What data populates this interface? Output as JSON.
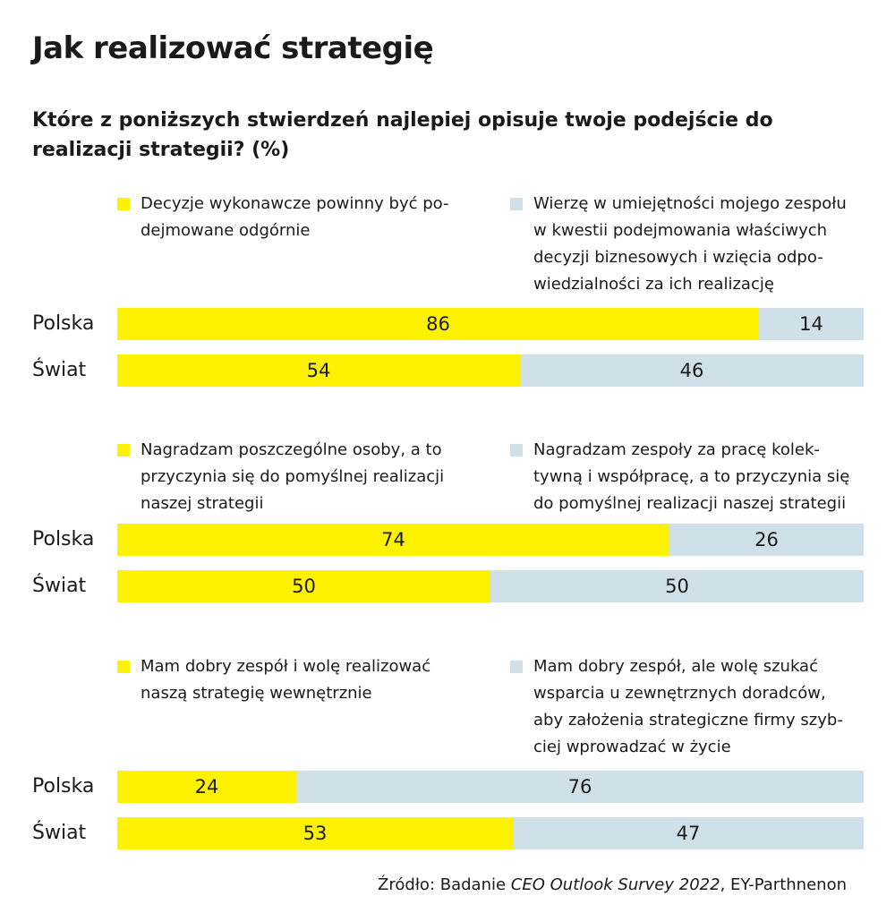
{
  "title": "Jak realizować strategię",
  "subtitle": "Które z poniższych stwierdzeń najlepiej opisuje twoje podejście do realizacji strategii? (%)",
  "colors": {
    "yellow": "#fff200",
    "blue": "#cfe0e8",
    "text": "#1a1a1a"
  },
  "source": {
    "prefix": "Źródło: Badanie ",
    "italic": "CEO Outlook Survey 2022",
    "suffix": ", EY-Parthnenon"
  },
  "chart_data": [
    {
      "type": "bar",
      "stacked": true,
      "categories": [
        "Polska",
        "Świat"
      ],
      "series": [
        {
          "name": "Decyzje wykonawcze powinny być podejmowane odgórnie",
          "values": [
            86,
            54
          ]
        },
        {
          "name": "Wierzę w umiejętności mojego zespołu w kwestii podejmowania właściwych decyzji biznesowych i wzięcia odpowiedzialności za ich realizację",
          "values": [
            14,
            46
          ]
        }
      ],
      "legend_lines": [
        [
          "Decyzje wykonawcze powinny być po-",
          "dejmowane odgórnie"
        ],
        [
          "Wierzę w umiejętności mojego zespołu",
          "w kwestii podejmowania właściwych",
          "decyzji biznesowych i wzięcia odpo-",
          "wiedzialności za ich realizację"
        ]
      ]
    },
    {
      "type": "bar",
      "stacked": true,
      "categories": [
        "Polska",
        "Świat"
      ],
      "series": [
        {
          "name": "Nagradzam poszczególne osoby, a to przyczynia się do pomyślnej realizacji naszej strategii",
          "values": [
            74,
            50
          ]
        },
        {
          "name": "Nagradzam zespoły za pracę kolektywną i współpracę, a to przyczynia się do pomyślnej realizacji naszej strategii",
          "values": [
            26,
            50
          ]
        }
      ],
      "legend_lines": [
        [
          "Nagradzam poszczególne osoby, a to",
          "przyczynia się do pomyślnej realizacji",
          "naszej strategii"
        ],
        [
          "Nagradzam zespoły za pracę kolek-",
          "tywną i współpracę, a to przyczynia się",
          "do pomyślnej realizacji naszej strategii"
        ]
      ]
    },
    {
      "type": "bar",
      "stacked": true,
      "categories": [
        "Polska",
        "Świat"
      ],
      "series": [
        {
          "name": "Mam dobry zespół i wolę realizować naszą strategię wewnętrznie",
          "values": [
            24,
            53
          ]
        },
        {
          "name": "Mam dobry zespół, ale wolę szukać wsparcia u zewnętrznych doradców, aby założenia strategiczne firmy szybciej wprowadzać w życie",
          "values": [
            76,
            47
          ]
        }
      ],
      "legend_lines": [
        [
          "Mam dobry zespół i wolę realizować",
          "naszą strategię wewnętrznie"
        ],
        [
          "Mam dobry zespół, ale wolę szukać",
          "wsparcia u zewnętrznych doradców,",
          "aby założenia strategiczne firmy szyb-",
          "ciej wprowadzać w życie"
        ]
      ]
    }
  ]
}
